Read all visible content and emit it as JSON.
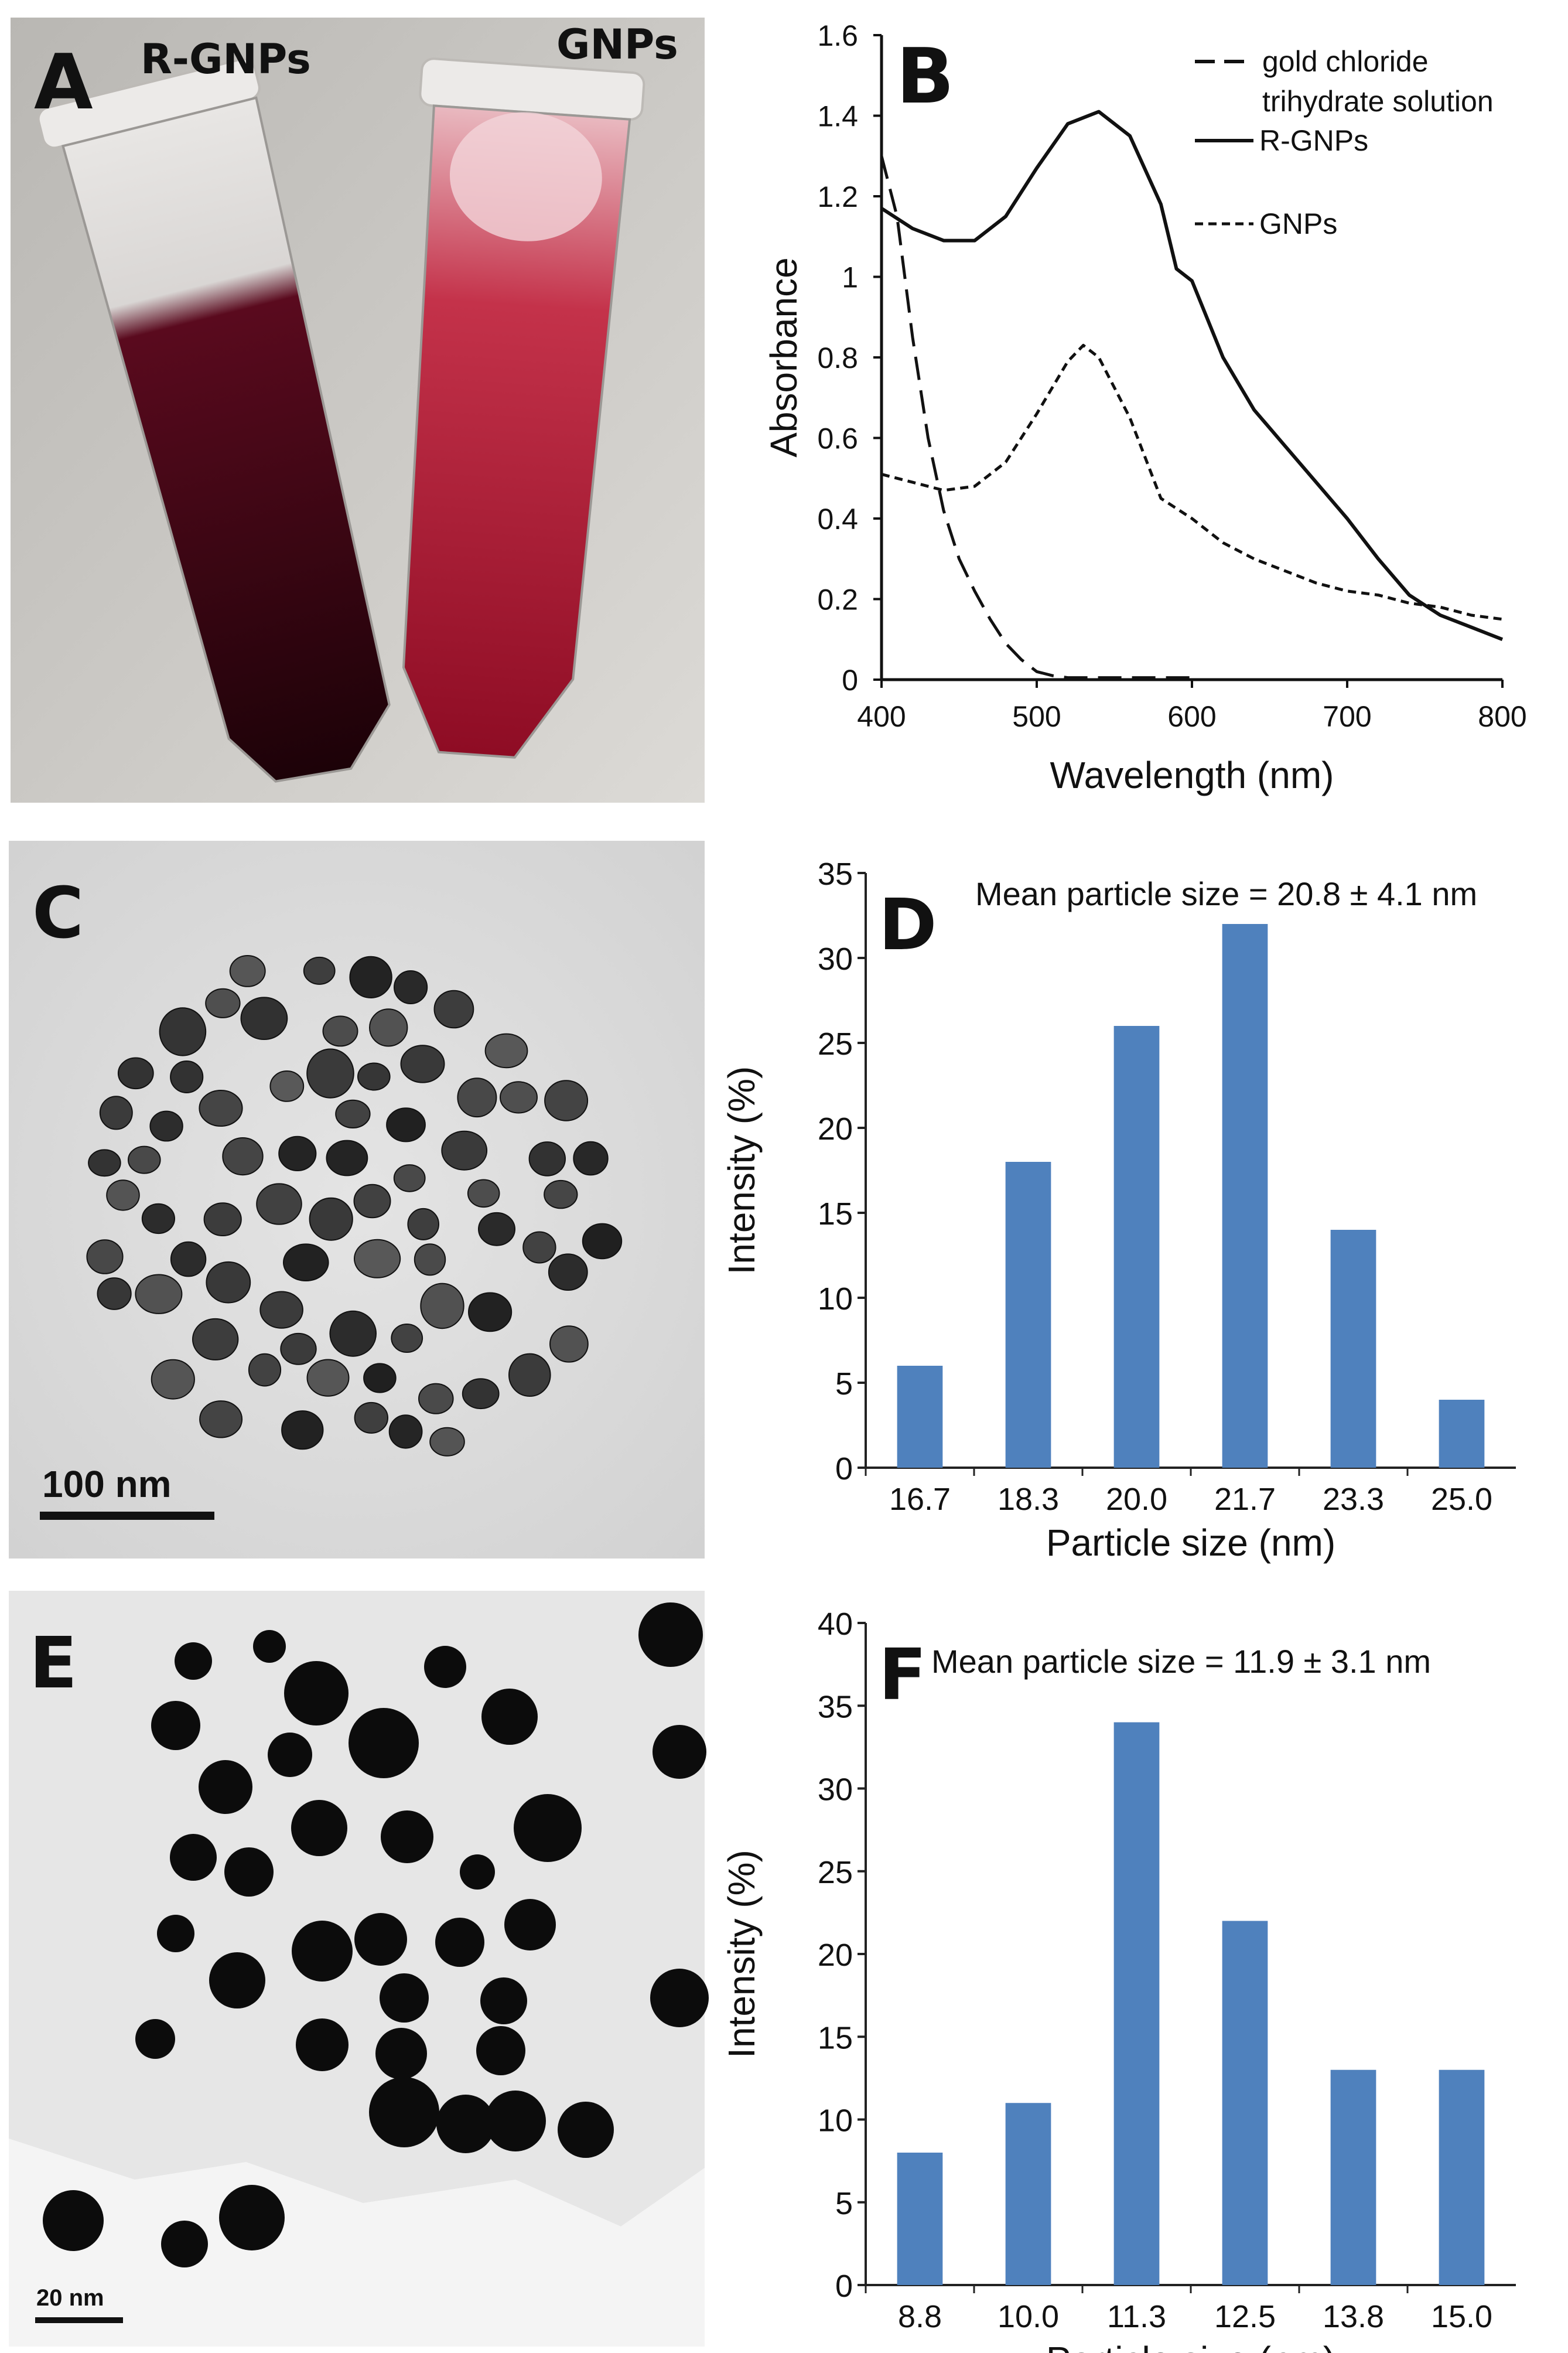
{
  "panels": {
    "A": {
      "letter": "A",
      "tube_labels": [
        "R-GNPs",
        "GNPs"
      ],
      "tube_colors": {
        "r_gnps": "#3a0514",
        "gnps": "#a8142c"
      }
    },
    "C": {
      "letter": "C",
      "scale_bar": "100 nm"
    },
    "E": {
      "letter": "E",
      "scale_bar": "20 nm"
    }
  },
  "chart_data": [
    {
      "id": "B",
      "letter": "B",
      "type": "line",
      "title": "",
      "xlabel": "Wavelength (nm)",
      "ylabel": "Absorbance",
      "xlim": [
        400,
        800
      ],
      "ylim": [
        0,
        1.6
      ],
      "xticks": [
        "400",
        "500",
        "600",
        "700",
        "800"
      ],
      "yticks": [
        "0",
        "0.2",
        "0.4",
        "0.6",
        "0.8",
        "1",
        "1.2",
        "1.4",
        "1.6"
      ],
      "grid": false,
      "legend": "top-right",
      "series": [
        {
          "name": "gold chloride trihydrate solution",
          "style": "long-dash",
          "x": [
            400,
            410,
            420,
            430,
            440,
            450,
            460,
            470,
            480,
            490,
            500,
            510,
            520,
            540,
            560,
            580,
            600
          ],
          "y": [
            1.3,
            1.15,
            0.85,
            0.6,
            0.42,
            0.3,
            0.22,
            0.15,
            0.09,
            0.05,
            0.02,
            0.01,
            0.005,
            0.005,
            0.005,
            0.005,
            0.005
          ]
        },
        {
          "name": "R-GNPs",
          "style": "solid",
          "x": [
            400,
            420,
            440,
            460,
            480,
            500,
            520,
            540,
            560,
            580,
            590,
            600,
            620,
            640,
            660,
            680,
            700,
            720,
            740,
            760,
            780,
            800
          ],
          "y": [
            1.17,
            1.12,
            1.09,
            1.09,
            1.15,
            1.27,
            1.38,
            1.41,
            1.35,
            1.18,
            1.02,
            0.99,
            0.8,
            0.67,
            0.58,
            0.49,
            0.4,
            0.3,
            0.21,
            0.16,
            0.13,
            0.1
          ]
        },
        {
          "name": "GNPs",
          "style": "short-dash",
          "x": [
            400,
            420,
            440,
            460,
            480,
            500,
            520,
            530,
            540,
            560,
            580,
            600,
            620,
            640,
            660,
            680,
            700,
            720,
            740,
            760,
            780,
            800
          ],
          "y": [
            0.51,
            0.49,
            0.47,
            0.48,
            0.54,
            0.66,
            0.79,
            0.83,
            0.8,
            0.65,
            0.45,
            0.4,
            0.34,
            0.3,
            0.27,
            0.24,
            0.22,
            0.21,
            0.19,
            0.18,
            0.16,
            0.15
          ]
        }
      ],
      "legend_entries": [
        "gold chloride",
        "trihydrate solution",
        "R-GNPs",
        "GNPs"
      ]
    },
    {
      "id": "D",
      "letter": "D",
      "type": "bar",
      "title": "Mean particle size = 20.8 ± 4.1 nm",
      "xlabel": "Particle size (nm)",
      "ylabel": "Intensity (%)",
      "categories": [
        "16.7",
        "18.3",
        "20.0",
        "21.7",
        "23.3",
        "25.0"
      ],
      "values": [
        6,
        18,
        26,
        32,
        14,
        4
      ],
      "ylim": [
        0,
        35
      ],
      "yticks": [
        "0",
        "5",
        "10",
        "15",
        "20",
        "25",
        "30",
        "35"
      ],
      "bar_color": "#4f81bd",
      "grid": false
    },
    {
      "id": "F",
      "letter": "F",
      "type": "bar",
      "title": "Mean particle size = 11.9 ± 3.1 nm",
      "xlabel": "Particle size (nm)",
      "ylabel": "Intensity (%)",
      "categories": [
        "8.8",
        "10.0",
        "11.3",
        "12.5",
        "13.8",
        "15.0"
      ],
      "values": [
        8,
        11,
        34,
        22,
        13,
        13
      ],
      "ylim": [
        0,
        40
      ],
      "yticks": [
        "0",
        "5",
        "10",
        "15",
        "20",
        "25",
        "30",
        "35",
        "40"
      ],
      "bar_color": "#4f81bd",
      "grid": false
    }
  ]
}
